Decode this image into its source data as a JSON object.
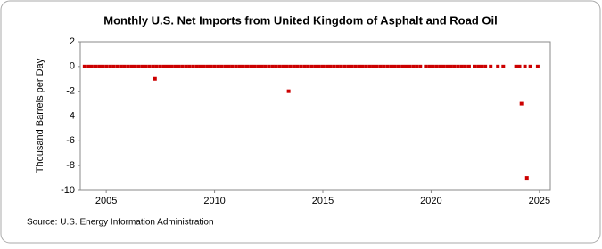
{
  "chart_data": {
    "type": "scatter",
    "title": "Monthly U.S. Net Imports from United Kingdom of Asphalt and Road Oil",
    "y_label": "Thousand Barrels per Day",
    "source": "Source: U.S. Energy Information Administration",
    "color": "#cc0000",
    "xlim": [
      2003.8,
      2025.5
    ],
    "xticks": [
      2005,
      2010,
      2015,
      2020,
      2025
    ],
    "ylim": [
      -10,
      2
    ],
    "yticks": [
      2,
      0,
      -2,
      -4,
      -6,
      -8,
      -10
    ],
    "grid": false,
    "x": [
      2004,
      2004.17,
      2004.33,
      2004.5,
      2004.67,
      2004.83,
      2005,
      2005.17,
      2005.33,
      2005.5,
      2005.67,
      2005.83,
      2006,
      2006.17,
      2006.33,
      2006.5,
      2006.67,
      2006.83,
      2007,
      2007.17,
      2007.25,
      2007.33,
      2007.5,
      2007.67,
      2007.83,
      2008,
      2008.17,
      2008.33,
      2008.5,
      2008.67,
      2008.83,
      2009,
      2009.17,
      2009.33,
      2009.5,
      2009.67,
      2009.83,
      2010,
      2010.17,
      2010.33,
      2010.5,
      2010.67,
      2010.83,
      2011,
      2011.17,
      2011.33,
      2011.5,
      2011.67,
      2011.83,
      2012,
      2012.17,
      2012.33,
      2012.5,
      2012.67,
      2012.83,
      2013,
      2013.17,
      2013.33,
      2013.42,
      2013.5,
      2013.67,
      2013.83,
      2014,
      2014.17,
      2014.33,
      2014.5,
      2014.67,
      2014.83,
      2015,
      2015.17,
      2015.33,
      2015.5,
      2015.67,
      2015.83,
      2016,
      2016.17,
      2016.33,
      2016.5,
      2016.67,
      2016.83,
      2017,
      2017.17,
      2017.33,
      2017.5,
      2017.67,
      2017.83,
      2018,
      2018.17,
      2018.33,
      2018.5,
      2018.67,
      2018.83,
      2019,
      2019.17,
      2019.33,
      2019.5,
      2019.75,
      2019.92,
      2020.08,
      2020.25,
      2020.42,
      2020.58,
      2020.75,
      2020.92,
      2021.08,
      2021.25,
      2021.42,
      2021.58,
      2021.75,
      2022,
      2022.17,
      2022.33,
      2022.5,
      2022.75,
      2023.08,
      2023.33,
      2023.92,
      2024.08,
      2024.17,
      2024.33,
      2024.42,
      2024.58,
      2024.92
    ],
    "values": [
      0,
      0,
      0,
      0,
      0,
      0,
      0,
      0,
      0,
      0,
      0,
      0,
      0,
      0,
      0,
      0,
      0,
      0,
      0,
      0,
      -1,
      0,
      0,
      0,
      0,
      0,
      0,
      0,
      0,
      0,
      0,
      0,
      0,
      0,
      0,
      0,
      0,
      0,
      0,
      0,
      0,
      0,
      0,
      0,
      0,
      0,
      0,
      0,
      0,
      0,
      0,
      0,
      0,
      0,
      0,
      0,
      0,
      0,
      -2,
      0,
      0,
      0,
      0,
      0,
      0,
      0,
      0,
      0,
      0,
      0,
      0,
      0,
      0,
      0,
      0,
      0,
      0,
      0,
      0,
      0,
      0,
      0,
      0,
      0,
      0,
      0,
      0,
      0,
      0,
      0,
      0,
      0,
      0,
      0,
      0,
      0,
      0,
      0,
      0,
      0,
      0,
      0,
      0,
      0,
      0,
      0,
      0,
      0,
      0,
      0,
      0,
      0,
      0,
      0,
      0,
      0,
      0,
      0,
      -3,
      0,
      -9,
      0,
      0
    ]
  }
}
